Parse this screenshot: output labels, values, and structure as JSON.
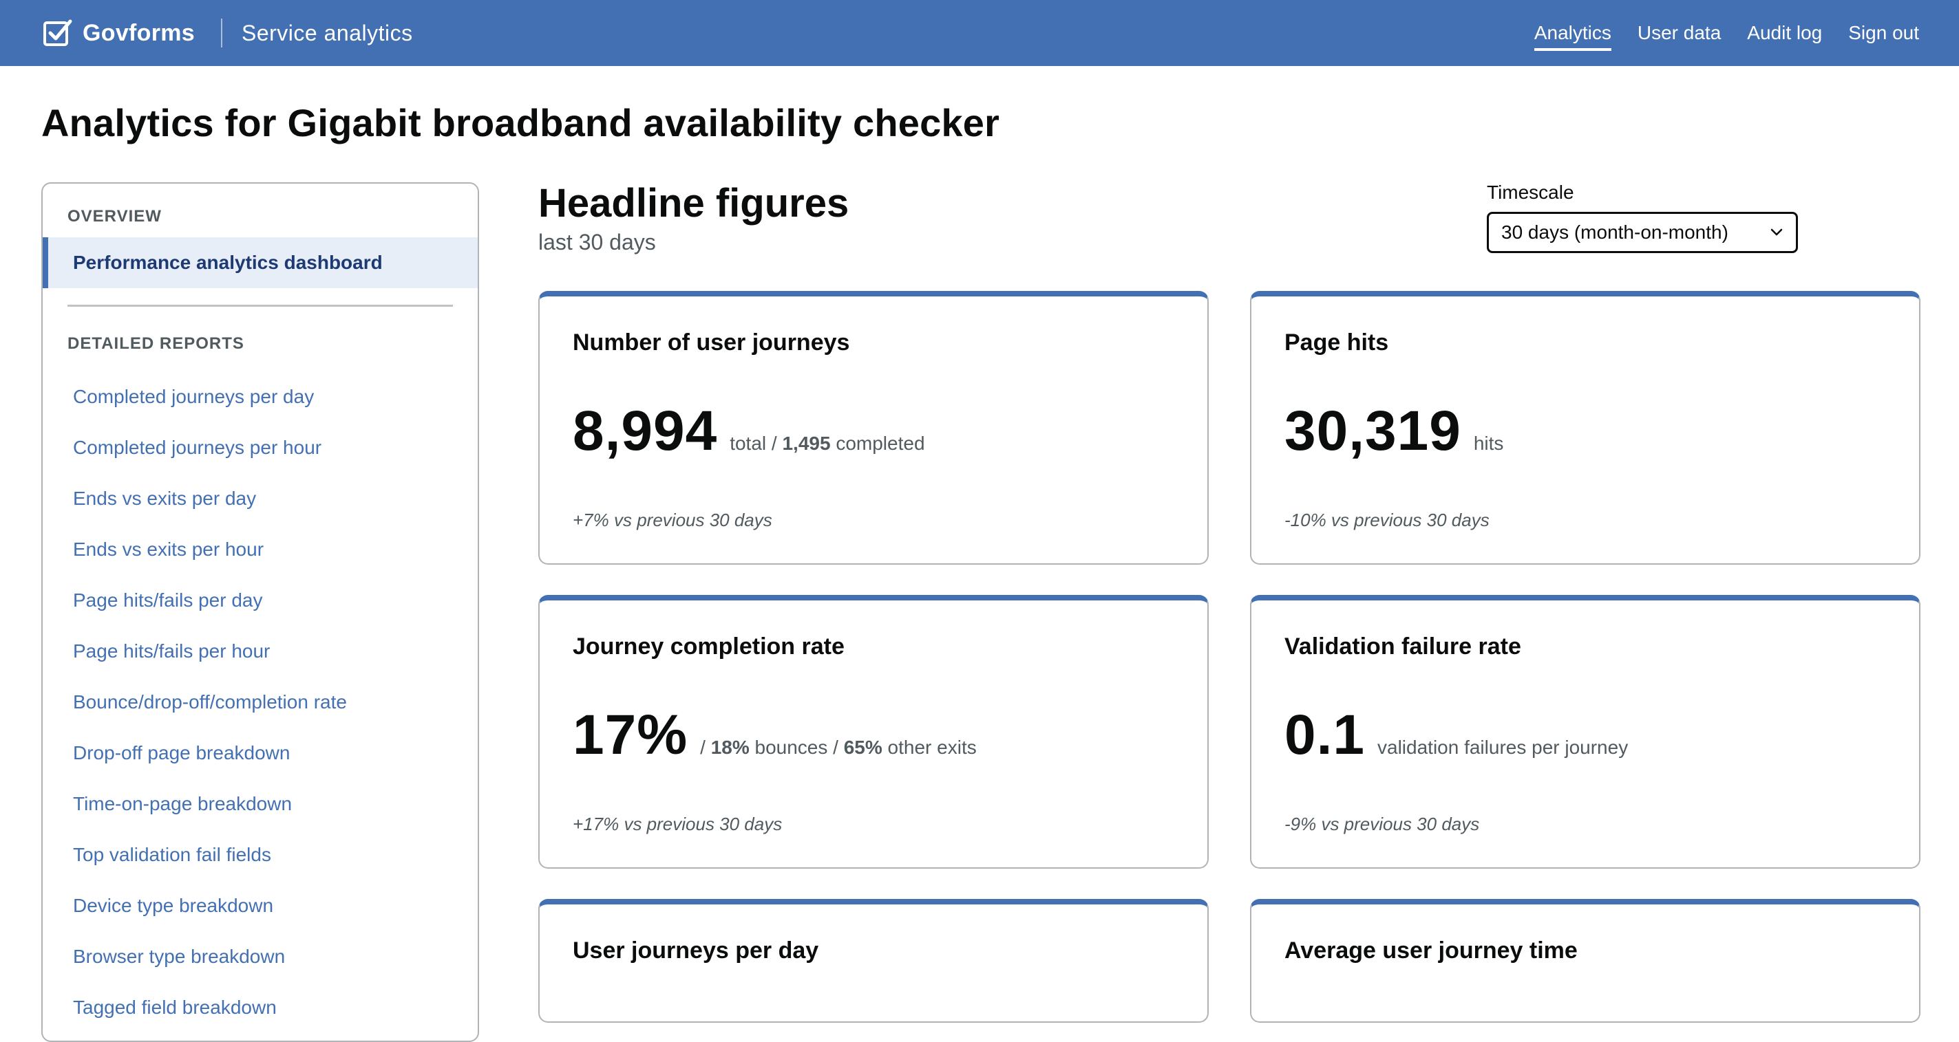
{
  "header": {
    "brand": "Govforms",
    "service": "Service analytics",
    "nav": [
      "Analytics",
      "User data",
      "Audit log",
      "Sign out"
    ],
    "active_nav_index": 0
  },
  "page_title": "Analytics for Gigabit broadband availability checker",
  "sidebar": {
    "overview_heading": "OVERVIEW",
    "active_item": "Performance analytics dashboard",
    "reports_heading": "DETAILED REPORTS",
    "reports": [
      "Completed journeys per day",
      "Completed journeys per hour",
      "Ends vs exits per day",
      "Ends vs exits per hour",
      "Page hits/fails per day",
      "Page hits/fails per hour",
      "Bounce/drop-off/completion rate",
      "Drop-off page breakdown",
      "Time-on-page breakdown",
      "Top validation fail fields",
      "Device type breakdown",
      "Browser type breakdown",
      "Tagged field breakdown"
    ]
  },
  "main": {
    "heading": "Headline figures",
    "subheading": "last 30 days",
    "timescale": {
      "label": "Timescale",
      "selected": "30 days (month-on-month)"
    },
    "cards": {
      "journeys": {
        "title": "Number of user journeys",
        "value": "8,994",
        "suffix_1": "total /",
        "suffix_bold": "1,495",
        "suffix_2": "completed",
        "delta": "+7% vs previous 30 days"
      },
      "hits": {
        "title": "Page hits",
        "value": "30,319",
        "suffix": "hits",
        "delta": "-10% vs previous 30 days"
      },
      "completion": {
        "title": "Journey completion rate",
        "value": "17%",
        "sep_1": "/",
        "bounces_value": "18%",
        "bounces_label": "bounces /",
        "exits_value": "65%",
        "exits_label": "other exits",
        "delta": "+17% vs previous 30 days"
      },
      "validation": {
        "title": "Validation failure rate",
        "value": "0.1",
        "suffix": "validation failures per journey",
        "delta": "-9% vs previous 30 days"
      },
      "per_day": {
        "title": "User journeys per day"
      },
      "avg_time": {
        "title": "Average user journey time"
      }
    }
  }
}
